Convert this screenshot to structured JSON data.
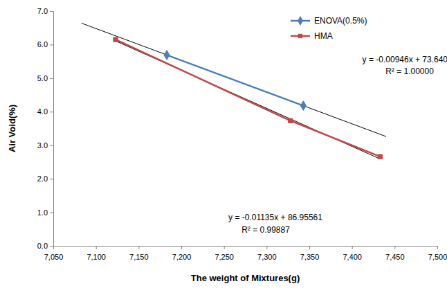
{
  "chart_data": {
    "type": "line",
    "x_label": "The weight of Mixtures(g)",
    "y_label": "Air Void(%)",
    "xlim": [
      7050,
      7500
    ],
    "xticks": [
      {
        "value": 7050,
        "label": "7,050"
      },
      {
        "value": 7100,
        "label": "7,100"
      },
      {
        "value": 7150,
        "label": "7,150"
      },
      {
        "value": 7200,
        "label": "7,200"
      },
      {
        "value": 7250,
        "label": "7,250"
      },
      {
        "value": 7300,
        "label": "7,300"
      },
      {
        "value": 7350,
        "label": "7,350"
      },
      {
        "value": 7400,
        "label": "7,400"
      },
      {
        "value": 7450,
        "label": "7,450"
      },
      {
        "value": 7500,
        "label": "7,500"
      }
    ],
    "ylim": [
      0,
      7
    ],
    "yticks": [
      {
        "value": 0,
        "label": "0.0"
      },
      {
        "value": 1,
        "label": "1.0"
      },
      {
        "value": 2,
        "label": "2.0"
      },
      {
        "value": 3,
        "label": "3.0"
      },
      {
        "value": 4,
        "label": "4.0"
      },
      {
        "value": 5,
        "label": "5.0"
      },
      {
        "value": 6,
        "label": "6.0"
      },
      {
        "value": 7,
        "label": "7.0"
      }
    ],
    "grid": false,
    "legend": "top-right",
    "series": [
      {
        "name": "ENOVA(0.5%)",
        "color": "#4a7ebb",
        "marker": "diamond",
        "line_style": "solid",
        "x": [
          7183,
          7343
        ],
        "values": [
          5.69,
          4.18
        ]
      },
      {
        "name": "HMA",
        "color": "#be4b48",
        "marker": "square",
        "line_style": "solid",
        "x": [
          7123,
          7328,
          7433
        ],
        "values": [
          6.15,
          3.73,
          2.66
        ]
      }
    ],
    "trendlines": [
      {
        "color": "#000000",
        "line_style": "solid",
        "x": [
          7083,
          7440
        ],
        "values": [
          6.64,
          3.26
        ]
      },
      {
        "color": "#000000",
        "line_style": "solid",
        "x": [
          7123,
          7433
        ],
        "values": [
          6.11,
          2.59
        ]
      }
    ],
    "annotations": [
      {
        "text": "y = -0.00946x + 73.64000"
      },
      {
        "text": "R² = 1.00000"
      },
      {
        "text": "y = -0.01135x + 86.95561"
      },
      {
        "text": "R² = 0.99887"
      }
    ]
  }
}
